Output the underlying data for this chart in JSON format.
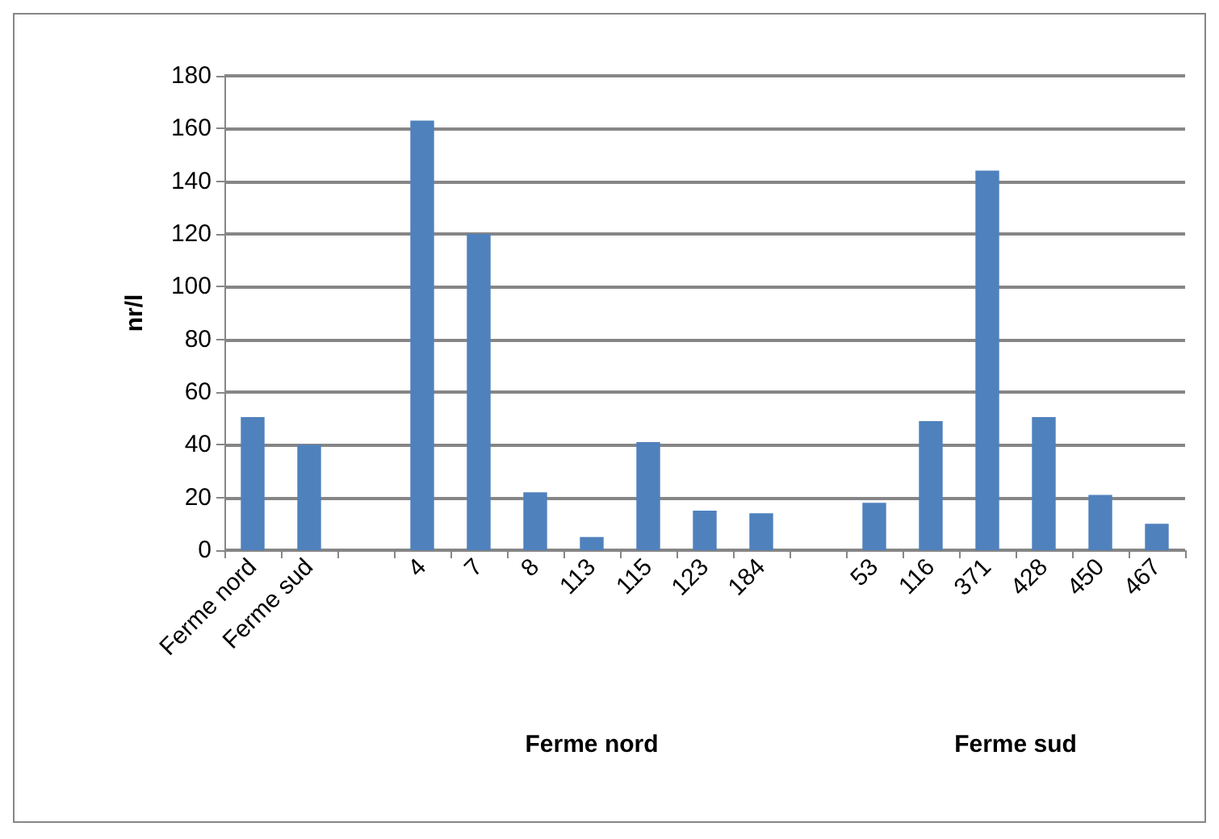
{
  "chart_data": {
    "type": "bar",
    "ylabel": "nr/l",
    "categories": [
      "Ferme nord",
      "Ferme sud",
      null,
      "4",
      "7",
      "8",
      "113",
      "115",
      "123",
      "184",
      null,
      "53",
      "116",
      "371",
      "428",
      "450",
      "467"
    ],
    "values": [
      50.5,
      40,
      null,
      163,
      120,
      22,
      5,
      41,
      15,
      14,
      null,
      18,
      49,
      144,
      50.5,
      21,
      10
    ],
    "color": "#4f81bd",
    "ylim": [
      0,
      180
    ],
    "yticks": [
      0,
      20,
      40,
      60,
      80,
      100,
      120,
      140,
      160,
      180
    ],
    "grid": "y",
    "annotations": [
      "Ferme nord",
      "Ferme sud"
    ]
  }
}
